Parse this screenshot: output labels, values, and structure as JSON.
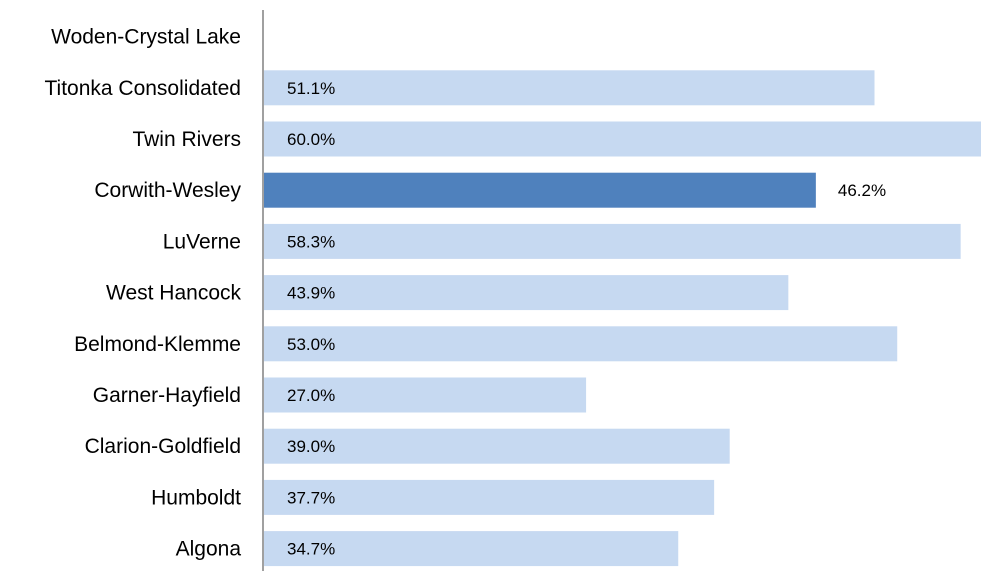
{
  "chart_data": {
    "type": "bar",
    "orientation": "horizontal",
    "title": "",
    "xlabel": "",
    "ylabel": "",
    "xlim": [
      0,
      60
    ],
    "grid": false,
    "legend": "none",
    "categories": [
      "Woden-Crystal Lake",
      "Titonka Consolidated",
      "Twin Rivers",
      "Corwith-Wesley",
      "LuVerne",
      "West Hancock",
      "Belmond-Klemme",
      "Garner-Hayfield",
      "Clarion-Goldfield",
      "Humboldt",
      "Algona"
    ],
    "values": [
      null,
      51.1,
      60.0,
      46.2,
      58.3,
      43.9,
      53.0,
      27.0,
      39.0,
      37.7,
      34.7
    ],
    "data_labels": [
      "",
      "51.1%",
      "60.0%",
      "46.2%",
      "58.3%",
      "43.9%",
      "53.0%",
      "27.0%",
      "39.0%",
      "37.7%",
      "34.7%"
    ],
    "highlighted_category": "Corwith-Wesley",
    "colors": {
      "bar": "#c6d9f1",
      "highlight": "#4f81bd",
      "axis": "#808080"
    }
  }
}
